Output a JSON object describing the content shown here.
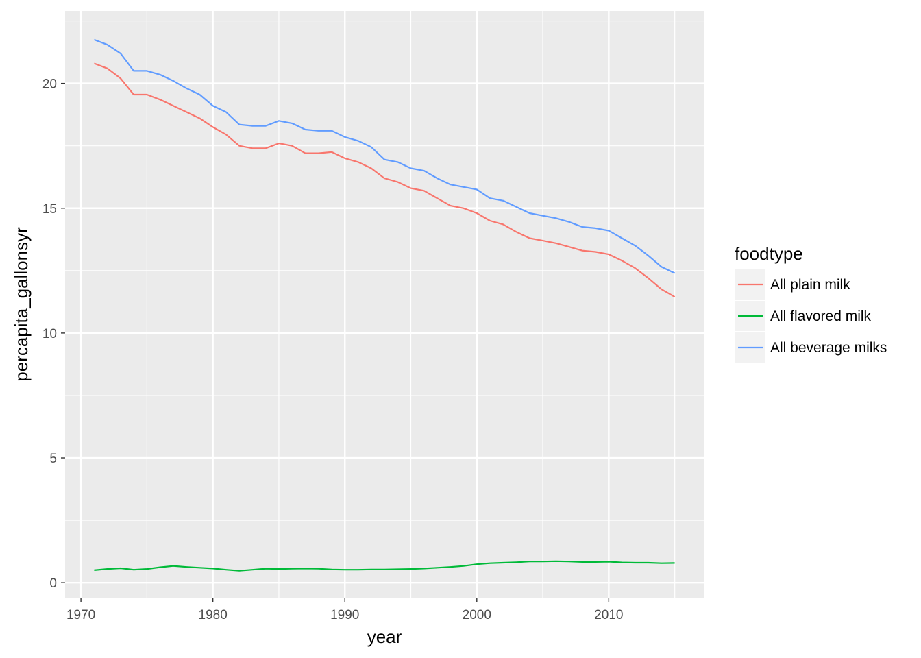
{
  "chart_data": {
    "type": "line",
    "title": "",
    "xlabel": "year",
    "ylabel": "percapita_gallonsyr",
    "xlim": [
      1968.8,
      2017.2
    ],
    "ylim": [
      -0.6,
      22.9
    ],
    "x_ticks": [
      1970,
      1980,
      1990,
      2000,
      2010
    ],
    "y_ticks": [
      0,
      5,
      10,
      15,
      20
    ],
    "grid": true,
    "legend": {
      "title": "foodtype",
      "position": "right"
    },
    "x": [
      1971,
      1972,
      1973,
      1974,
      1975,
      1976,
      1977,
      1978,
      1979,
      1980,
      1981,
      1982,
      1983,
      1984,
      1985,
      1986,
      1987,
      1988,
      1989,
      1990,
      1991,
      1992,
      1993,
      1994,
      1995,
      1996,
      1997,
      1998,
      1999,
      2000,
      2001,
      2002,
      2003,
      2004,
      2005,
      2006,
      2007,
      2008,
      2009,
      2010,
      2011,
      2012,
      2013,
      2014,
      2015
    ],
    "series": [
      {
        "name": "All plain milk",
        "color": "#F8766D",
        "values": [
          20.8,
          20.6,
          20.2,
          19.55,
          19.55,
          19.35,
          19.1,
          18.85,
          18.6,
          18.25,
          17.95,
          17.5,
          17.4,
          17.4,
          17.6,
          17.5,
          17.2,
          17.2,
          17.25,
          17.0,
          16.85,
          16.6,
          16.2,
          16.05,
          15.8,
          15.7,
          15.4,
          15.1,
          15.0,
          14.8,
          14.5,
          14.35,
          14.05,
          13.8,
          13.7,
          13.6,
          13.45,
          13.3,
          13.25,
          13.15,
          12.9,
          12.6,
          12.2,
          11.75,
          11.45
        ]
      },
      {
        "name": "All flavored milk",
        "color": "#00BA38",
        "values": [
          0.5,
          0.55,
          0.58,
          0.52,
          0.55,
          0.62,
          0.67,
          0.63,
          0.6,
          0.57,
          0.52,
          0.48,
          0.52,
          0.56,
          0.55,
          0.56,
          0.57,
          0.56,
          0.53,
          0.52,
          0.52,
          0.53,
          0.53,
          0.54,
          0.55,
          0.57,
          0.6,
          0.63,
          0.67,
          0.74,
          0.78,
          0.8,
          0.82,
          0.85,
          0.85,
          0.86,
          0.85,
          0.83,
          0.83,
          0.84,
          0.81,
          0.8,
          0.8,
          0.78,
          0.79
        ]
      },
      {
        "name": "All beverage milks",
        "color": "#619CFF",
        "values": [
          21.75,
          21.55,
          21.2,
          20.5,
          20.5,
          20.35,
          20.1,
          19.8,
          19.55,
          19.1,
          18.85,
          18.35,
          18.3,
          18.3,
          18.5,
          18.4,
          18.15,
          18.1,
          18.1,
          17.85,
          17.7,
          17.45,
          16.95,
          16.85,
          16.6,
          16.5,
          16.2,
          15.95,
          15.85,
          15.75,
          15.4,
          15.3,
          15.05,
          14.8,
          14.7,
          14.6,
          14.45,
          14.25,
          14.2,
          14.1,
          13.8,
          13.5,
          13.1,
          12.65,
          12.4
        ]
      }
    ]
  }
}
